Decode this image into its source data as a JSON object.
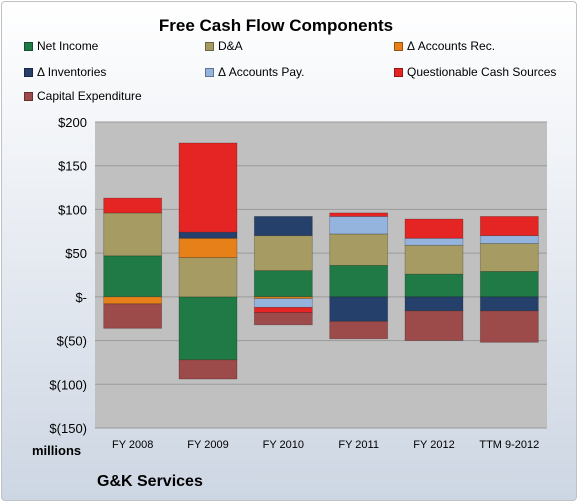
{
  "chart_data": {
    "type": "bar",
    "stacked": true,
    "title": "Free Cash Flow Components",
    "ylabel": "millions",
    "ylim": [
      -150,
      200
    ],
    "yticks": [
      200,
      150,
      100,
      50,
      0,
      -50,
      -100,
      -150
    ],
    "ytick_labels": [
      "$200",
      "$150",
      "$100",
      "$50",
      "$-",
      "$(50)",
      "$(100)",
      "$(150)"
    ],
    "categories": [
      "FY 2008",
      "FY 2009",
      "FY 2010",
      "FY 2011",
      "FY 2012",
      "TTM 9-2012"
    ],
    "grid": true,
    "legend_position": "top",
    "series": [
      {
        "name": "Net Income",
        "color": "#1f7a45",
        "values": [
          47,
          -72,
          30,
          36,
          26,
          29
        ]
      },
      {
        "name": "D&A",
        "color": "#a69b62",
        "values": [
          49,
          45,
          40,
          36,
          33,
          32
        ]
      },
      {
        "name": "Δ Accounts Rec.",
        "color": "#e8801a",
        "values": [
          -8,
          22,
          -2,
          0,
          0,
          0
        ]
      },
      {
        "name": "Δ Inventories",
        "color": "#24406b",
        "values": [
          0,
          7,
          22,
          -28,
          -16,
          -16
        ]
      },
      {
        "name": "Δ Accounts Pay.",
        "color": "#95b4dd",
        "values": [
          0,
          0,
          -10,
          20,
          8,
          9
        ]
      },
      {
        "name": "Questionable Cash Sources",
        "color": "#e52424",
        "values": [
          17,
          102,
          -6,
          4,
          22,
          22
        ]
      },
      {
        "name": "Capital Expenditure",
        "color": "#9c4a4a",
        "values": [
          -28,
          -22,
          -14,
          -20,
          -34,
          -36
        ]
      }
    ]
  },
  "footer": {
    "company": "G&K Services"
  }
}
